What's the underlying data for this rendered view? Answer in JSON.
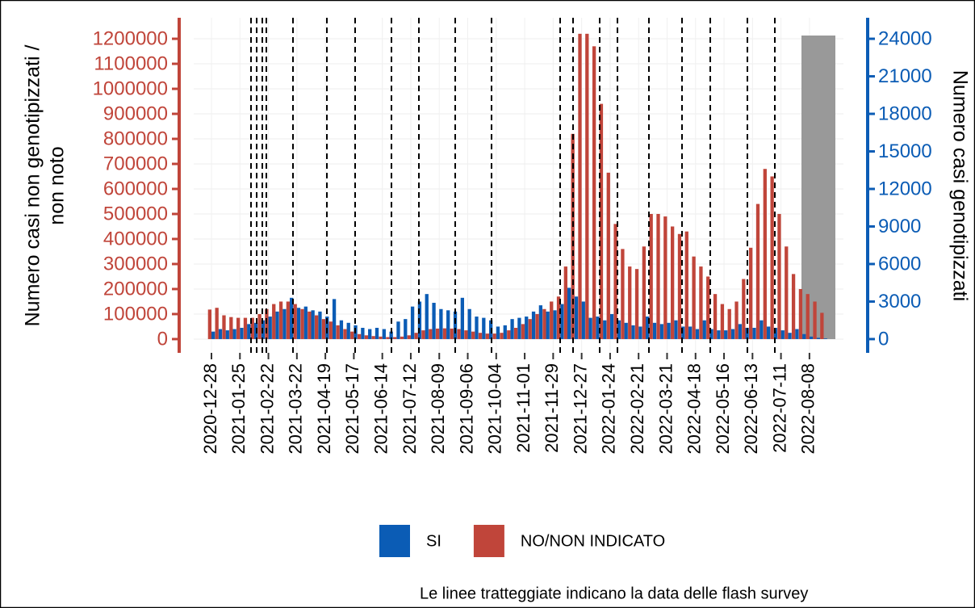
{
  "chart_data": {
    "type": "bar",
    "ylabel": [
      "Numero casi non genotipizzati /",
      "non noto"
    ],
    "y2label": "Numero casi genotipizzati",
    "note": "Le linee tratteggiate indicano la data delle flash survey",
    "categories": [
      "2020-12-28",
      null,
      null,
      null,
      "2021-01-25",
      null,
      null,
      null,
      "2021-02-22",
      null,
      null,
      null,
      "2021-03-22",
      null,
      null,
      null,
      "2021-04-19",
      null,
      null,
      null,
      "2021-05-17",
      null,
      null,
      null,
      "2021-06-14",
      null,
      null,
      null,
      "2021-07-12",
      null,
      null,
      null,
      "2021-08-09",
      null,
      null,
      null,
      "2021-09-06",
      null,
      null,
      null,
      "2021-10-04",
      null,
      null,
      null,
      "2021-11-01",
      null,
      null,
      null,
      "2021-11-29",
      null,
      null,
      null,
      "2021-12-27",
      null,
      null,
      null,
      "2022-01-24",
      null,
      null,
      null,
      "2022-02-21",
      null,
      null,
      null,
      "2022-03-21",
      null,
      null,
      null,
      "2022-04-18",
      null,
      null,
      null,
      "2022-05-16",
      null,
      null,
      null,
      "2022-06-13",
      null,
      null,
      null,
      "2022-07-11",
      null,
      null,
      null,
      "2022-08-08",
      null,
      null
    ],
    "series": [
      {
        "name": "SI",
        "color": "#0b5cb5",
        "axis": "y2",
        "values": [
          600,
          800,
          700,
          800,
          900,
          1200,
          1300,
          1500,
          1800,
          2200,
          2400,
          3300,
          2500,
          2600,
          2300,
          2200,
          1800,
          3200,
          1500,
          1300,
          1100,
          900,
          800,
          900,
          800,
          600,
          1400,
          1600,
          2600,
          3000,
          3600,
          2900,
          2400,
          2300,
          2200,
          3300,
          2400,
          1800,
          1700,
          1500,
          1000,
          1100,
          1600,
          1700,
          1800,
          2200,
          2700,
          2200,
          2300,
          2800,
          4100,
          3400,
          3000,
          1700,
          1800,
          1500,
          2000,
          1500,
          1300,
          1100,
          1000,
          1800,
          1300,
          1200,
          1300,
          1500,
          1000,
          1000,
          800,
          1500,
          800,
          700,
          700,
          800,
          1200,
          900,
          900,
          1500,
          1000,
          900,
          700,
          500,
          800,
          400,
          200,
          100,
          50
        ]
      },
      {
        "name": "NO/NON INDICATO",
        "color": "#c0453a",
        "values": [
          118000,
          125000,
          95000,
          88000,
          85000,
          85000,
          85000,
          100000,
          120000,
          140000,
          150000,
          150000,
          140000,
          120000,
          110000,
          95000,
          80000,
          70000,
          55000,
          40000,
          30000,
          20000,
          15000,
          12000,
          10000,
          8000,
          8000,
          10000,
          15000,
          25000,
          35000,
          40000,
          42000,
          43000,
          42000,
          40000,
          35000,
          30000,
          25000,
          22000,
          22000,
          25000,
          35000,
          45000,
          60000,
          80000,
          100000,
          120000,
          150000,
          170000,
          290000,
          820000,
          1220000,
          1220000,
          1170000,
          940000,
          665000,
          460000,
          360000,
          290000,
          280000,
          370000,
          500000,
          500000,
          490000,
          450000,
          420000,
          430000,
          330000,
          290000,
          250000,
          180000,
          140000,
          120000,
          150000,
          240000,
          365000,
          540000,
          680000,
          650000,
          500000,
          370000,
          260000,
          200000,
          180000,
          150000,
          105000
        ]
      }
    ],
    "ylim": [
      -55000,
      1284000
    ],
    "yticks": [
      0,
      100000,
      200000,
      300000,
      400000,
      500000,
      600000,
      700000,
      800000,
      900000,
      1000000,
      1100000,
      1200000
    ],
    "y2lim": [
      -1100,
      25680
    ],
    "y2ticks": [
      0,
      3000,
      6000,
      9000,
      12000,
      15000,
      18000,
      21000,
      24000
    ],
    "grid": true
  }
}
